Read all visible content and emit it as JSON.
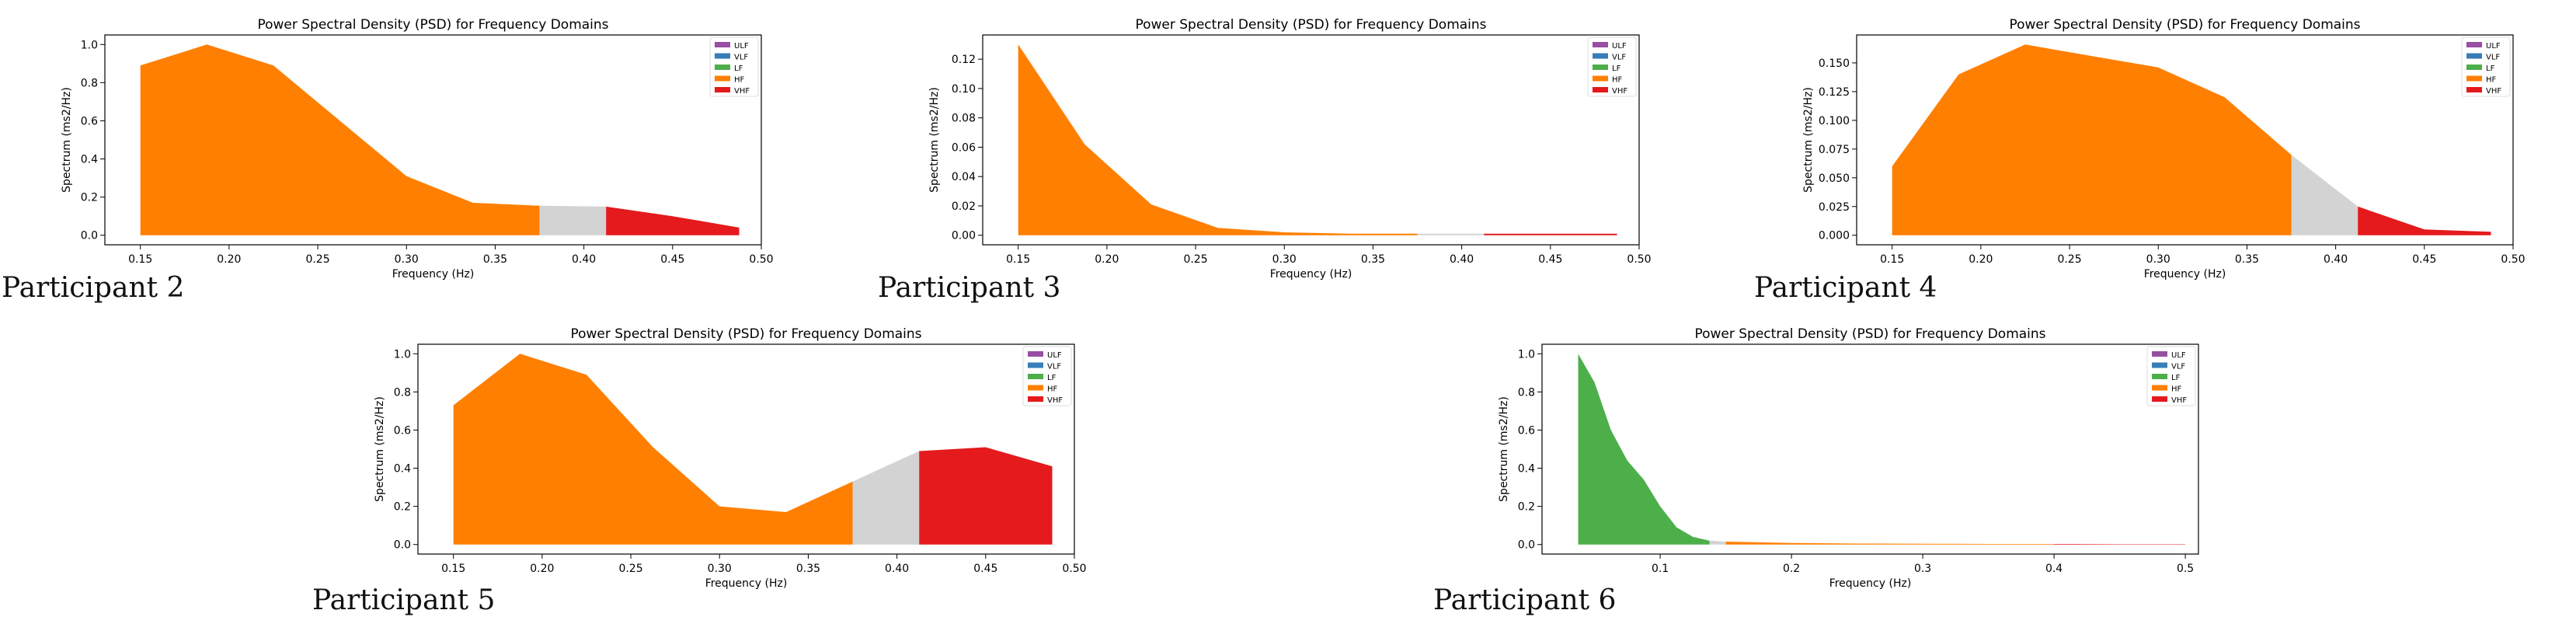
{
  "colors": {
    "ULF": "#984ea3",
    "VLF": "#377eb8",
    "LF": "#4daf4a",
    "HF": "#ff7f00",
    "VHF": "#e41a1c",
    "gap": "#d3d3d3"
  },
  "legend": [
    "ULF",
    "VLF",
    "LF",
    "HF",
    "VHF"
  ],
  "participants": [
    {
      "label": "Participant 2"
    },
    {
      "label": "Participant 3"
    },
    {
      "label": "Participant 4"
    },
    {
      "label": "Participant 5"
    },
    {
      "label": "Participant 6"
    }
  ],
  "chart_data": [
    {
      "type": "area",
      "title": "Power Spectral Density (PSD) for Frequency Domains",
      "xlabel": "Frequency (Hz)",
      "ylabel": "Spectrum (ms2/Hz)",
      "xlim": [
        0.13,
        0.5
      ],
      "ylim": [
        -0.05,
        1.05
      ],
      "xticks": [
        0.15,
        0.2,
        0.25,
        0.3,
        0.35,
        0.4,
        0.45,
        0.5
      ],
      "xtick_labels": [
        "0.15",
        "0.20",
        "0.25",
        "0.30",
        "0.35",
        "0.40",
        "0.45",
        "0.50"
      ],
      "yticks": [
        0.0,
        0.2,
        0.4,
        0.6,
        0.8,
        1.0
      ],
      "ytick_labels": [
        "0.0",
        "0.2",
        "0.4",
        "0.6",
        "0.8",
        "1.0"
      ],
      "legend_position": "top-right",
      "grid": false,
      "series": [
        {
          "name": "HF",
          "x": [
            0.15,
            0.1875,
            0.225,
            0.2625,
            0.3,
            0.3375,
            0.375
          ],
          "y": [
            0.89,
            1.0,
            0.89,
            0.6,
            0.31,
            0.17,
            0.155
          ]
        },
        {
          "name": "gap",
          "x": [
            0.375,
            0.4125
          ],
          "y": [
            0.155,
            0.15
          ]
        },
        {
          "name": "VHF",
          "x": [
            0.4125,
            0.45,
            0.4875
          ],
          "y": [
            0.15,
            0.1,
            0.04
          ]
        }
      ]
    },
    {
      "type": "area",
      "title": "Power Spectral Density (PSD) for Frequency Domains",
      "xlabel": "Frequency (Hz)",
      "ylabel": "Spectrum (ms2/Hz)",
      "xlim": [
        0.13,
        0.5
      ],
      "ylim": [
        -0.0065,
        0.1365
      ],
      "xticks": [
        0.15,
        0.2,
        0.25,
        0.3,
        0.35,
        0.4,
        0.45,
        0.5
      ],
      "xtick_labels": [
        "0.15",
        "0.20",
        "0.25",
        "0.30",
        "0.35",
        "0.40",
        "0.45",
        "0.50"
      ],
      "yticks": [
        0.0,
        0.02,
        0.04,
        0.06,
        0.08,
        0.1,
        0.12
      ],
      "ytick_labels": [
        "0.00",
        "0.02",
        "0.04",
        "0.06",
        "0.08",
        "0.10",
        "0.12"
      ],
      "legend_position": "top-right",
      "grid": false,
      "series": [
        {
          "name": "HF",
          "x": [
            0.15,
            0.1875,
            0.225,
            0.2625,
            0.3,
            0.3375,
            0.375
          ],
          "y": [
            0.13,
            0.062,
            0.021,
            0.005,
            0.002,
            0.001,
            0.001
          ]
        },
        {
          "name": "gap",
          "x": [
            0.375,
            0.4125
          ],
          "y": [
            0.001,
            0.001
          ]
        },
        {
          "name": "VHF",
          "x": [
            0.4125,
            0.45,
            0.4875
          ],
          "y": [
            0.001,
            0.001,
            0.001
          ]
        }
      ]
    },
    {
      "type": "area",
      "title": "Power Spectral Density (PSD) for Frequency Domains",
      "xlabel": "Frequency (Hz)",
      "ylabel": "Spectrum (ms2/Hz)",
      "xlim": [
        0.13,
        0.5
      ],
      "ylim": [
        -0.0083,
        0.1743
      ],
      "xticks": [
        0.15,
        0.2,
        0.25,
        0.3,
        0.35,
        0.4,
        0.45,
        0.5
      ],
      "xtick_labels": [
        "0.15",
        "0.20",
        "0.25",
        "0.30",
        "0.35",
        "0.40",
        "0.45",
        "0.50"
      ],
      "yticks": [
        0.0,
        0.025,
        0.05,
        0.075,
        0.1,
        0.125,
        0.15
      ],
      "ytick_labels": [
        "0.000",
        "0.025",
        "0.050",
        "0.075",
        "0.100",
        "0.125",
        "0.150"
      ],
      "legend_position": "top-right",
      "grid": false,
      "series": [
        {
          "name": "HF",
          "x": [
            0.15,
            0.1875,
            0.225,
            0.2625,
            0.3,
            0.3375,
            0.375
          ],
          "y": [
            0.06,
            0.14,
            0.166,
            0.156,
            0.146,
            0.12,
            0.07
          ]
        },
        {
          "name": "gap",
          "x": [
            0.375,
            0.4125
          ],
          "y": [
            0.07,
            0.025
          ]
        },
        {
          "name": "VHF",
          "x": [
            0.4125,
            0.45,
            0.4875
          ],
          "y": [
            0.025,
            0.005,
            0.003
          ]
        }
      ]
    },
    {
      "type": "area",
      "title": "Power Spectral Density (PSD) for Frequency Domains",
      "xlabel": "Frequency (Hz)",
      "ylabel": "Spectrum (ms2/Hz)",
      "xlim": [
        0.13,
        0.5
      ],
      "ylim": [
        -0.05,
        1.05
      ],
      "xticks": [
        0.15,
        0.2,
        0.25,
        0.3,
        0.35,
        0.4,
        0.45,
        0.5
      ],
      "xtick_labels": [
        "0.15",
        "0.20",
        "0.25",
        "0.30",
        "0.35",
        "0.40",
        "0.45",
        "0.50"
      ],
      "yticks": [
        0.0,
        0.2,
        0.4,
        0.6,
        0.8,
        1.0
      ],
      "ytick_labels": [
        "0.0",
        "0.2",
        "0.4",
        "0.6",
        "0.8",
        "1.0"
      ],
      "legend_position": "top-right",
      "grid": false,
      "series": [
        {
          "name": "HF",
          "x": [
            0.15,
            0.1875,
            0.225,
            0.2625,
            0.3,
            0.3375,
            0.375
          ],
          "y": [
            0.73,
            1.0,
            0.89,
            0.51,
            0.2,
            0.17,
            0.33
          ]
        },
        {
          "name": "gap",
          "x": [
            0.375,
            0.4125
          ],
          "y": [
            0.33,
            0.49
          ]
        },
        {
          "name": "VHF",
          "x": [
            0.4125,
            0.45,
            0.4875
          ],
          "y": [
            0.49,
            0.51,
            0.41
          ]
        }
      ]
    },
    {
      "type": "area",
      "title": "Power Spectral Density (PSD) for Frequency Domains",
      "xlabel": "Frequency (Hz)",
      "ylabel": "Spectrum (ms2/Hz)",
      "xlim": [
        0.01,
        0.51
      ],
      "ylim": [
        -0.05,
        1.05
      ],
      "xticks": [
        0.1,
        0.2,
        0.3,
        0.4,
        0.5
      ],
      "xtick_labels": [
        "0.1",
        "0.2",
        "0.3",
        "0.4",
        "0.5"
      ],
      "yticks": [
        0.0,
        0.2,
        0.4,
        0.6,
        0.8,
        1.0
      ],
      "ytick_labels": [
        "0.0",
        "0.2",
        "0.4",
        "0.6",
        "0.8",
        "1.0"
      ],
      "legend_position": "top-right",
      "grid": false,
      "series": [
        {
          "name": "LF",
          "x": [
            0.0375,
            0.05,
            0.0625,
            0.075,
            0.0875,
            0.1,
            0.1125,
            0.125,
            0.1375
          ],
          "y": [
            1.0,
            0.85,
            0.6,
            0.44,
            0.34,
            0.2,
            0.09,
            0.04,
            0.02
          ]
        },
        {
          "name": "gap",
          "x": [
            0.1375,
            0.15
          ],
          "y": [
            0.02,
            0.015
          ]
        },
        {
          "name": "HF",
          "x": [
            0.15,
            0.2,
            0.25,
            0.3,
            0.35,
            0.4
          ],
          "y": [
            0.015,
            0.008,
            0.005,
            0.004,
            0.003,
            0.003
          ]
        },
        {
          "name": "VHF",
          "x": [
            0.4,
            0.45,
            0.5
          ],
          "y": [
            0.003,
            0.002,
            0.002
          ]
        }
      ]
    }
  ]
}
